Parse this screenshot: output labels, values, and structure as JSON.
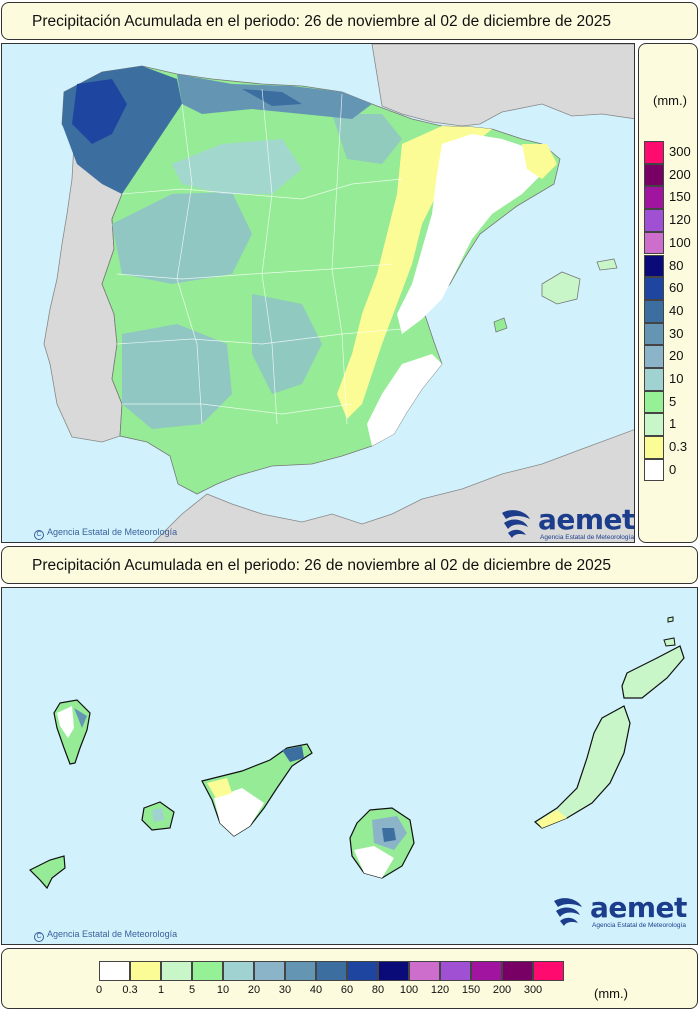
{
  "maps": {
    "peninsula": {
      "title": "Precipitación Acumulada en el periodo: 26 de noviembre al 02 de diciembre de 2025",
      "credit": "Agencia Estatal de Meteorología"
    },
    "canarias": {
      "title": "Precipitación Acumulada en el periodo: 26 de noviembre al 02 de diciembre de 2025",
      "credit": "Agencia Estatal de Meteorología"
    }
  },
  "logo": {
    "word": "aemet",
    "subtitle": "Agencia Estatal de Meteorología"
  },
  "legend": {
    "unit": "(mm.)",
    "classes": [
      {
        "label": "0",
        "color": "#ffffff"
      },
      {
        "label": "0.3",
        "color": "#fcfc96"
      },
      {
        "label": "1",
        "color": "#c8f6c8"
      },
      {
        "label": "5",
        "color": "#96f096"
      },
      {
        "label": "10",
        "color": "#a0d2d2"
      },
      {
        "label": "20",
        "color": "#8cb4c8"
      },
      {
        "label": "30",
        "color": "#6496b4"
      },
      {
        "label": "40",
        "color": "#3c6ea0"
      },
      {
        "label": "60",
        "color": "#1e46a0"
      },
      {
        "label": "80",
        "color": "#0a0a78"
      },
      {
        "label": "100",
        "color": "#cd6ecd"
      },
      {
        "label": "120",
        "color": "#a050d2"
      },
      {
        "label": "150",
        "color": "#a014a0"
      },
      {
        "label": "200",
        "color": "#780064"
      },
      {
        "label": "300",
        "color": "#ff0a6e"
      }
    ]
  }
}
